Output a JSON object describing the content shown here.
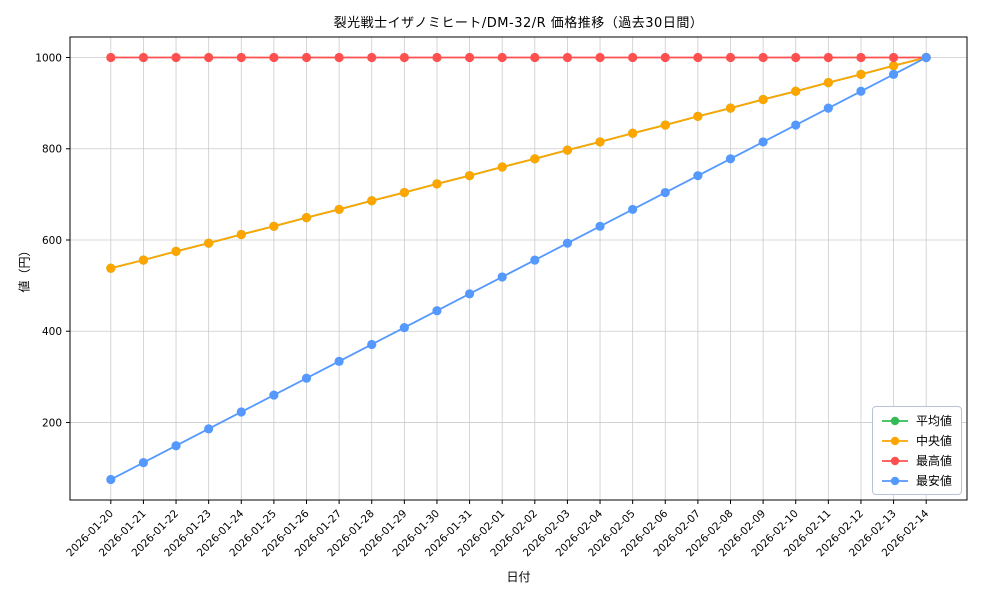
{
  "chart_data": {
    "type": "line",
    "title": "裂光戦士イザノミヒート/DM-32/R 価格推移（過去30日間）",
    "xlabel": "日付",
    "ylabel": "値（円）",
    "grid": true,
    "legend_position": "lower right",
    "ylim": [
      30,
      1045
    ],
    "yticks": [
      200,
      400,
      600,
      800,
      1000
    ],
    "x": [
      "2026-01-20",
      "2026-01-21",
      "2026-01-22",
      "2026-01-23",
      "2026-01-24",
      "2026-01-25",
      "2026-01-26",
      "2026-01-27",
      "2026-01-28",
      "2026-01-29",
      "2026-01-30",
      "2026-01-31",
      "2026-02-01",
      "2026-02-02",
      "2026-02-03",
      "2026-02-04",
      "2026-02-05",
      "2026-02-06",
      "2026-02-07",
      "2026-02-08",
      "2026-02-09",
      "2026-02-10",
      "2026-02-11",
      "2026-02-12",
      "2026-02-13",
      "2026-02-14"
    ],
    "series": [
      {
        "key": "mean",
        "name": "平均値",
        "color": "#33bb55",
        "values": [
          538,
          556,
          575,
          593,
          612,
          630,
          649,
          667,
          686,
          704,
          723,
          741,
          760,
          778,
          797,
          815,
          834,
          852,
          871,
          889,
          908,
          926,
          945,
          963,
          982,
          1000
        ]
      },
      {
        "key": "median",
        "name": "中央値",
        "color": "#ffa500",
        "values": [
          538,
          556,
          575,
          593,
          612,
          630,
          649,
          667,
          686,
          704,
          723,
          741,
          760,
          778,
          797,
          815,
          834,
          852,
          871,
          889,
          908,
          926,
          945,
          963,
          982,
          1000
        ]
      },
      {
        "key": "max",
        "name": "最高値",
        "color": "#ff5050",
        "values": [
          1000,
          1000,
          1000,
          1000,
          1000,
          1000,
          1000,
          1000,
          1000,
          1000,
          1000,
          1000,
          1000,
          1000,
          1000,
          1000,
          1000,
          1000,
          1000,
          1000,
          1000,
          1000,
          1000,
          1000,
          1000,
          1000
        ]
      },
      {
        "key": "min",
        "name": "最安値",
        "color": "#5599ff",
        "values": [
          75,
          112,
          149,
          186,
          223,
          260,
          297,
          334,
          371,
          408,
          445,
          482,
          519,
          556,
          593,
          630,
          667,
          704,
          741,
          778,
          815,
          852,
          889,
          926,
          963,
          1000
        ]
      }
    ]
  }
}
